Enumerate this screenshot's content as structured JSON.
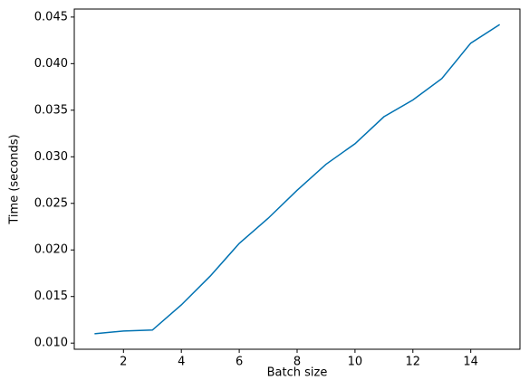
{
  "chart_data": {
    "type": "line",
    "xlabel": "Batch size",
    "ylabel": "Time (seconds)",
    "x": [
      1,
      2,
      3,
      4,
      5,
      6,
      7,
      8,
      9,
      10,
      11,
      12,
      13,
      14,
      15
    ],
    "series": [
      {
        "color": "#0072b2",
        "values": [
          0.011,
          0.0113,
          0.0114,
          0.0141,
          0.0172,
          0.0207,
          0.0234,
          0.0264,
          0.0292,
          0.0314,
          0.0343,
          0.0361,
          0.0384,
          0.0422,
          0.0442
        ]
      }
    ],
    "xlim": [
      0.3,
      15.7
    ],
    "ylim": [
      0.00934,
      0.04586
    ],
    "xticks": [
      2,
      4,
      6,
      8,
      10,
      12,
      14
    ],
    "yticks": [
      {
        "value": 0.01,
        "label": "0.010"
      },
      {
        "value": 0.015,
        "label": "0.015"
      },
      {
        "value": 0.02,
        "label": "0.020"
      },
      {
        "value": 0.025,
        "label": "0.025"
      },
      {
        "value": 0.03,
        "label": "0.030"
      },
      {
        "value": 0.035,
        "label": "0.035"
      },
      {
        "value": 0.04,
        "label": "0.040"
      },
      {
        "value": 0.045,
        "label": "0.045"
      }
    ],
    "grid": false
  }
}
